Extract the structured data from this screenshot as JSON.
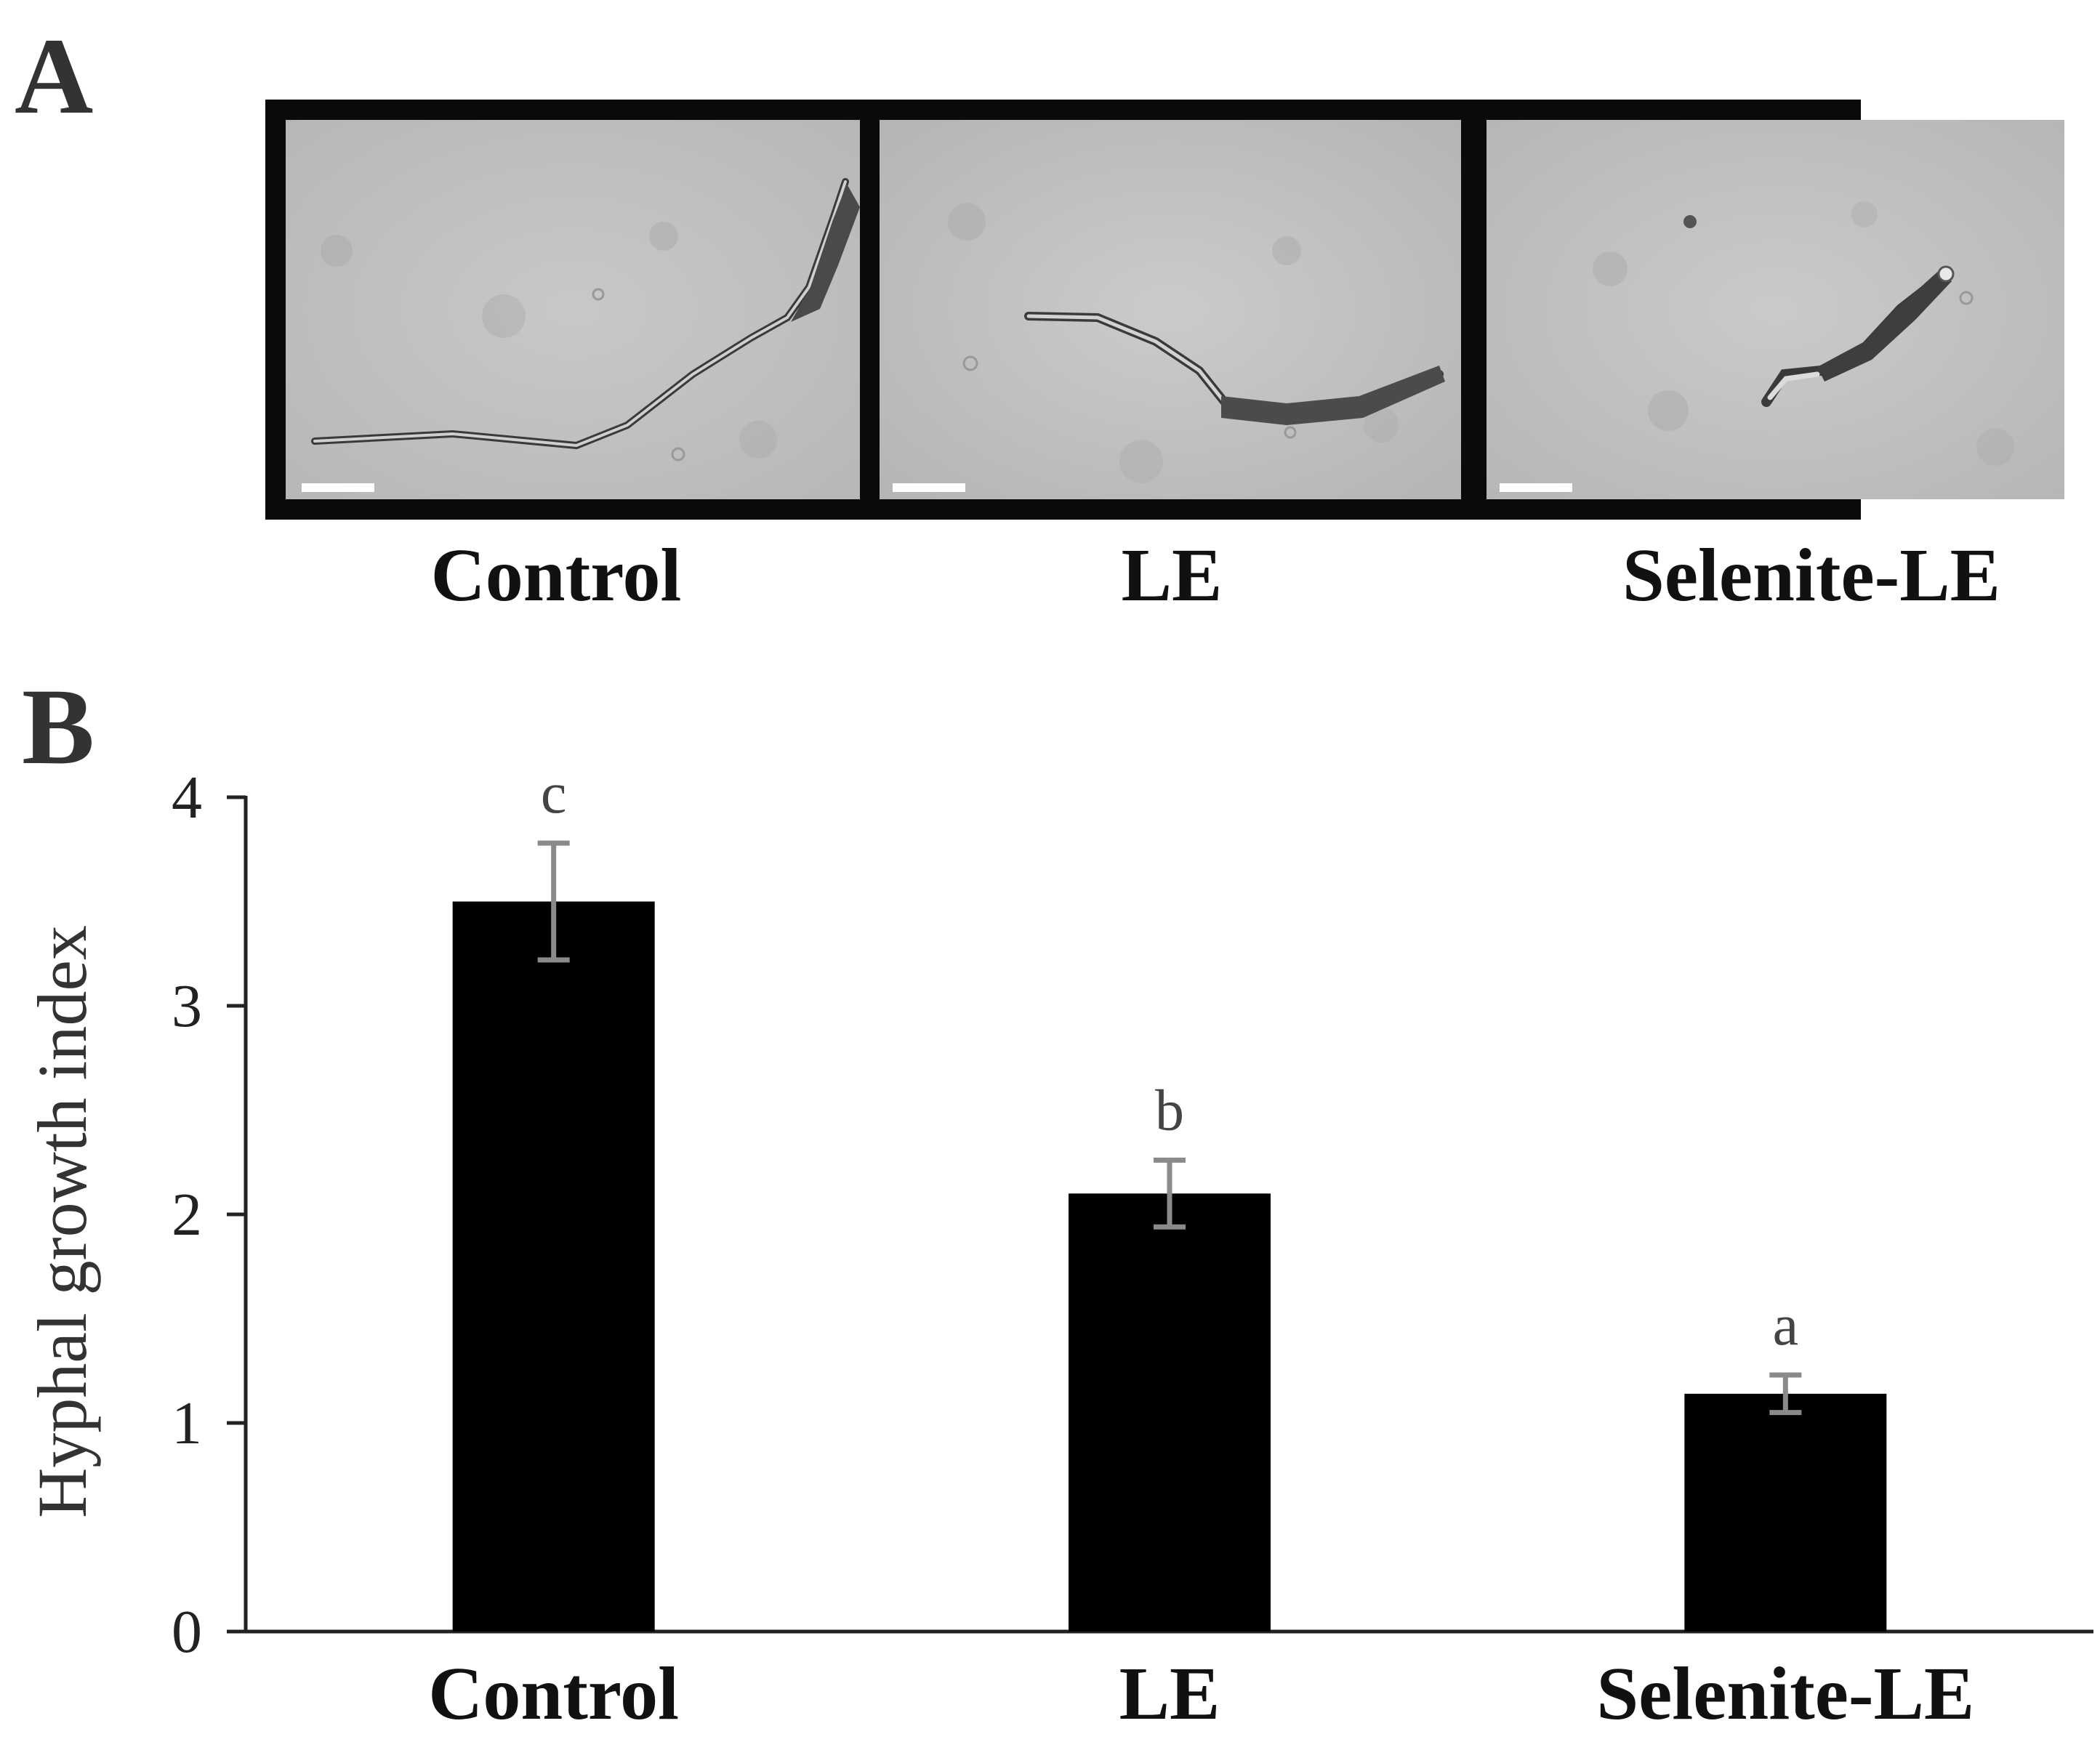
{
  "panel_a": {
    "letter": "A",
    "conditions": [
      "Control",
      "LE",
      "Selenite-LE"
    ]
  },
  "panel_b": {
    "letter": "B"
  },
  "chart_data": {
    "type": "bar",
    "categories": [
      "Control",
      "LE",
      "Selenite-LE"
    ],
    "values": [
      3.5,
      2.1,
      1.14
    ],
    "errors": [
      0.28,
      0.16,
      0.09
    ],
    "significance": [
      "c",
      "b",
      "a"
    ],
    "title": "",
    "xlabel": "",
    "ylabel": "Hyphal growth index",
    "ylim": [
      0,
      4
    ],
    "yticks": [
      0,
      1,
      2,
      3,
      4
    ],
    "grid": false,
    "bar_color": "#000000",
    "error_bar_color": "#8a8a8a"
  }
}
